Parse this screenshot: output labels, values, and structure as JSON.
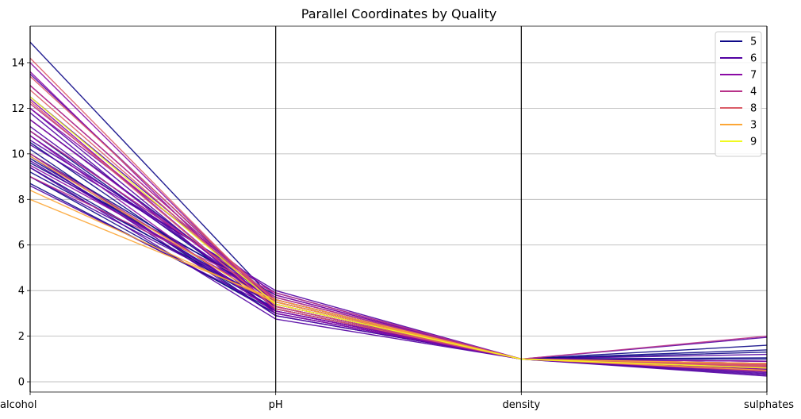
{
  "chart_data": {
    "type": "line",
    "subtype": "parallel-coordinates",
    "title": "Parallel Coordinates by Quality",
    "categories": [
      "alcohol",
      "pH",
      "density",
      "sulphates"
    ],
    "ylim": [
      -0.45,
      15.6
    ],
    "yticks": [
      0,
      2,
      4,
      6,
      8,
      10,
      12,
      14
    ],
    "grid": "y",
    "legend_position": "top-right",
    "series": [
      {
        "name": "5",
        "color": "#0d0887",
        "lines": [
          [
            14.9,
            3.5,
            1.0,
            1.0
          ],
          [
            11.0,
            3.3,
            1.0,
            1.6
          ],
          [
            10.5,
            3.1,
            0.996,
            1.3
          ],
          [
            9.8,
            3.3,
            0.997,
            0.6
          ],
          [
            9.4,
            3.2,
            0.997,
            0.55
          ],
          [
            9.2,
            3.4,
            0.998,
            0.7
          ],
          [
            9.0,
            3.0,
            0.997,
            1.05
          ],
          [
            8.7,
            3.1,
            0.997,
            0.8
          ],
          [
            10.0,
            3.6,
            0.997,
            0.5
          ],
          [
            11.5,
            3.5,
            0.996,
            0.9
          ],
          [
            9.6,
            3.8,
            0.997,
            0.45
          ],
          [
            10.2,
            2.9,
            0.997,
            1.4
          ]
        ]
      },
      {
        "name": "6",
        "color": "#5302a3",
        "lines": [
          [
            13.5,
            3.4,
            0.995,
            0.8
          ],
          [
            12.0,
            3.2,
            0.995,
            0.7
          ],
          [
            11.2,
            3.3,
            0.996,
            0.65
          ],
          [
            10.8,
            3.5,
            0.996,
            0.6
          ],
          [
            10.4,
            4.0,
            0.997,
            0.55
          ],
          [
            10.0,
            3.1,
            0.997,
            1.95
          ],
          [
            9.7,
            3.3,
            0.997,
            0.75
          ],
          [
            9.4,
            2.75,
            0.997,
            0.5
          ],
          [
            9.0,
            3.4,
            0.997,
            0.6
          ],
          [
            8.6,
            3.2,
            0.998,
            0.4
          ],
          [
            12.5,
            3.6,
            0.995,
            0.3
          ],
          [
            11.8,
            3.0,
            0.996,
            0.9
          ],
          [
            10.6,
            3.9,
            0.996,
            0.35
          ],
          [
            9.9,
            2.9,
            0.997,
            1.2
          ],
          [
            11.0,
            3.7,
            0.996,
            0.25
          ]
        ]
      },
      {
        "name": "7",
        "color": "#8b0aa5",
        "lines": [
          [
            14.0,
            3.3,
            0.994,
            0.7
          ],
          [
            13.0,
            3.5,
            0.995,
            0.8
          ],
          [
            12.4,
            3.2,
            0.995,
            0.6
          ],
          [
            12.0,
            3.8,
            0.995,
            0.9
          ],
          [
            11.5,
            3.4,
            0.995,
            0.5
          ],
          [
            10.8,
            3.0,
            0.996,
            0.75
          ],
          [
            9.5,
            3.6,
            0.997,
            0.45
          ],
          [
            13.6,
            3.1,
            0.994,
            0.55
          ]
        ]
      },
      {
        "name": "4",
        "color": "#b83289",
        "lines": [
          [
            13.0,
            3.5,
            0.995,
            0.6
          ],
          [
            11.0,
            3.7,
            0.996,
            0.5
          ],
          [
            10.0,
            3.4,
            0.997,
            0.7
          ],
          [
            9.0,
            3.9,
            0.997,
            2.0
          ],
          [
            12.2,
            3.6,
            0.995,
            0.45
          ]
        ]
      },
      {
        "name": "8",
        "color": "#db5c68",
        "lines": [
          [
            14.2,
            3.3,
            0.994,
            0.75
          ],
          [
            12.8,
            3.4,
            0.995,
            0.8
          ],
          [
            12.3,
            3.2,
            0.995,
            0.7
          ],
          [
            13.4,
            3.5,
            0.994,
            0.65
          ]
        ]
      },
      {
        "name": "3",
        "color": "#fca636",
        "lines": [
          [
            8.0,
            3.6,
            0.997,
            0.5
          ],
          [
            8.4,
            3.5,
            0.997,
            0.6
          ],
          [
            9.9,
            3.4,
            0.998,
            0.8
          ]
        ]
      },
      {
        "name": "9",
        "color": "#f0f921",
        "lines": [
          [
            12.5,
            3.4,
            0.994,
            0.6
          ]
        ]
      }
    ]
  }
}
